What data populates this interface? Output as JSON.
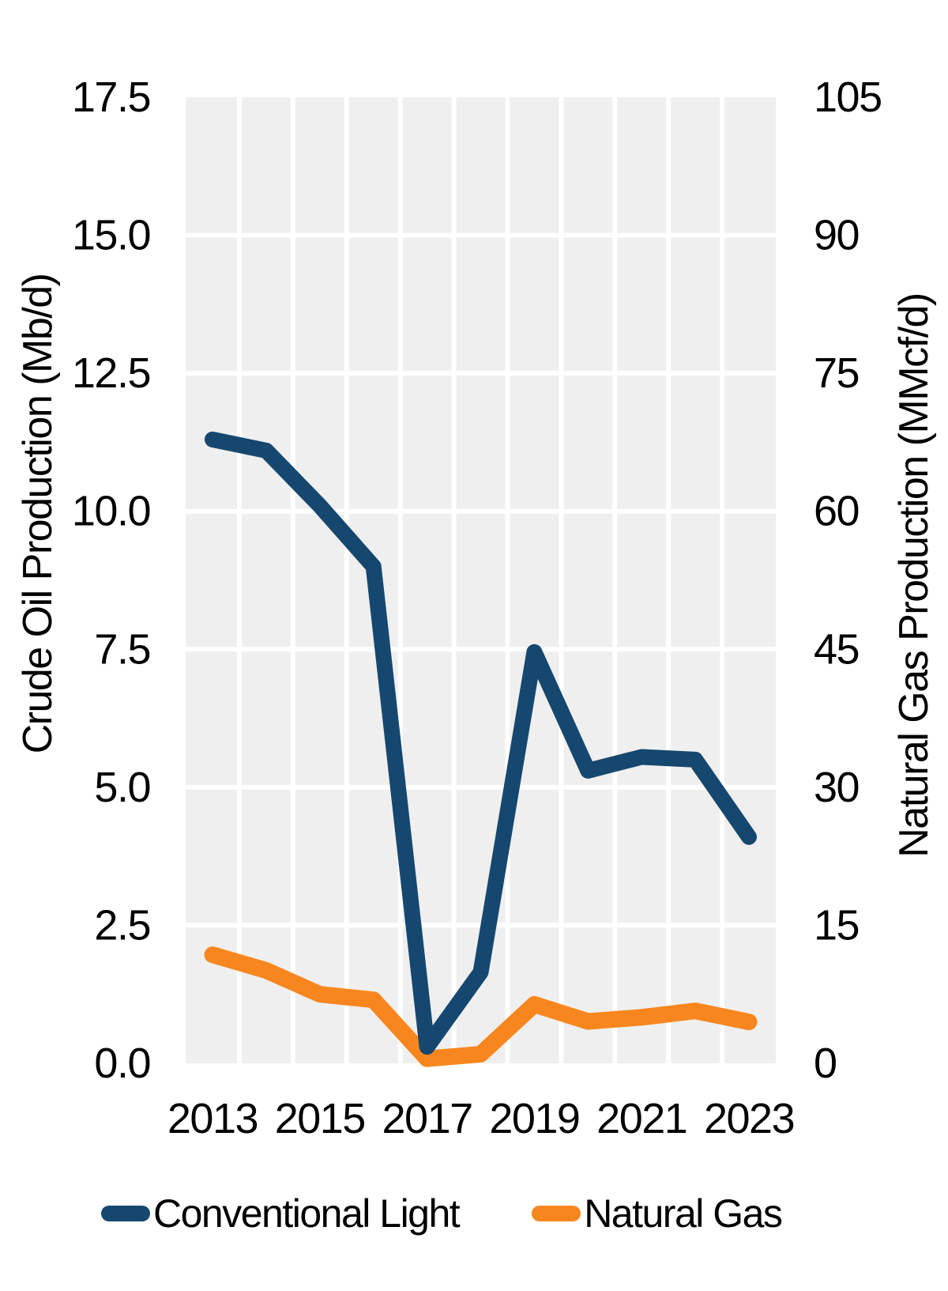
{
  "chart_data": {
    "type": "line",
    "title": "",
    "categories": [
      2013,
      2014,
      2015,
      2016,
      2017,
      2018,
      2019,
      2020,
      2021,
      2022,
      2023
    ],
    "series": [
      {
        "name": "Conventional Light",
        "axis": "left",
        "color": "#16486F",
        "unit": "Mb/d",
        "values": [
          11.3,
          11.1,
          10.1,
          9.0,
          0.3,
          1.65,
          7.45,
          5.3,
          5.55,
          5.5,
          4.1
        ]
      },
      {
        "name": "Natural Gas",
        "axis": "right",
        "color": "#F8861E",
        "unit": "MMcf/d",
        "values": [
          11.8,
          10.1,
          7.5,
          6.9,
          0.5,
          1.0,
          6.4,
          4.55,
          5.0,
          5.7,
          4.5
        ]
      }
    ],
    "ylabel_left": "Crude Oil Production (Mb/d)",
    "ylabel_right": "Natural Gas Production (MMcf/d)",
    "xlabel": "",
    "y_left": {
      "min": 0,
      "max": 17.5,
      "tick_labels": [
        "17.5",
        "15.0",
        "12.5",
        "10.0",
        "7.5",
        "5.0",
        "2.5",
        "0.0"
      ]
    },
    "y_right": {
      "min": 0,
      "max": 105,
      "tick_labels": [
        "105",
        "90",
        "75",
        "60",
        "45",
        "30",
        "15",
        "0"
      ]
    },
    "x_tick_labels": [
      "2013",
      "2015",
      "2017",
      "2019",
      "2021",
      "2023"
    ],
    "grid": "white-lines-on-gray-panel",
    "panel_bg": "#EFEFEF",
    "background": "#FFFFFF",
    "legend_position": "bottom"
  },
  "legend": {
    "items": [
      {
        "label": "Conventional Light"
      },
      {
        "label": "Natural Gas"
      }
    ]
  }
}
